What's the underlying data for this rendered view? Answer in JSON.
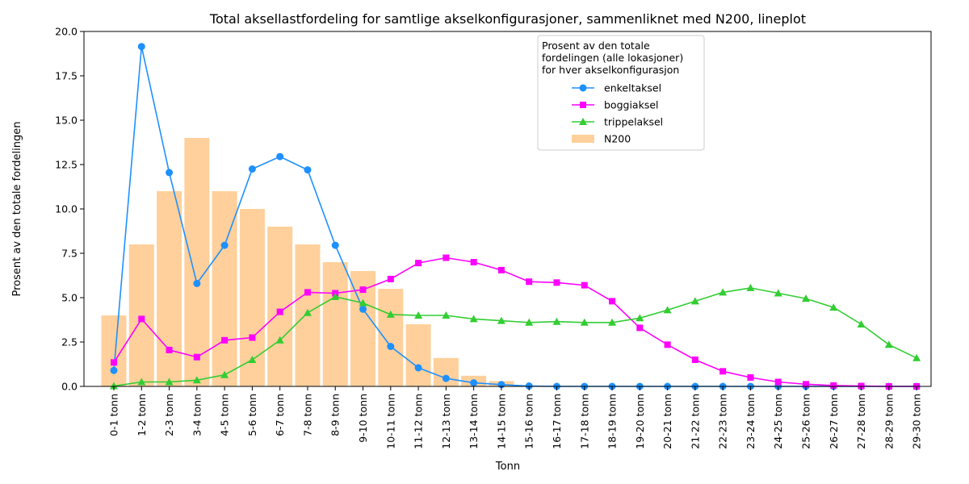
{
  "chart_data": {
    "type": "line",
    "title": "Total aksellastfordeling for samtlige akselkonfigurasjoner, sammenliknet med N200, lineplot",
    "xlabel": "Tonn",
    "ylabel": "Prosent av den totale fordelingen",
    "ylim": [
      0,
      20
    ],
    "yticks": [
      "0.0",
      "2.5",
      "5.0",
      "7.5",
      "10.0",
      "12.5",
      "15.0",
      "17.5",
      "20.0"
    ],
    "grid": false,
    "legend_position": "top-center",
    "legend_title": "Prosent av den totale\nfordelingen (alle lokasjoner)\nfor hver akselkonfigurasjon",
    "categories": [
      "0-1 tonn",
      "1-2 tonn",
      "2-3 tonn",
      "3-4 tonn",
      "4-5 tonn",
      "5-6 tonn",
      "6-7 tonn",
      "7-8 tonn",
      "8-9 tonn",
      "9-10 tonn",
      "10-11 tonn",
      "11-12 tonn",
      "12-13 tonn",
      "13-14 tonn",
      "14-15 tonn",
      "15-16 tonn",
      "16-17 tonn",
      "17-18 tonn",
      "18-19 tonn",
      "19-20 tonn",
      "20-21 tonn",
      "21-22 tonn",
      "22-23 tonn",
      "23-24 tonn",
      "24-25 tonn",
      "25-26 tonn",
      "26-27 tonn",
      "27-28 tonn",
      "28-29 tonn",
      "29-30 tonn"
    ],
    "series": [
      {
        "name": "enkeltaksel",
        "type": "line",
        "marker": "circle",
        "color": "#1e90ff",
        "values": [
          0.9,
          19.15,
          12.05,
          5.8,
          7.95,
          12.25,
          12.95,
          12.2,
          7.95,
          4.35,
          2.25,
          1.05,
          0.45,
          0.2,
          0.1,
          0.02,
          0.0,
          0.0,
          0.0,
          0.0,
          0.0,
          0.0,
          0.0,
          0.0,
          0.0,
          0.0,
          0.0,
          0.0,
          0.0,
          0.0
        ]
      },
      {
        "name": "boggiaksel",
        "type": "line",
        "marker": "square",
        "color": "#ff00ff",
        "values": [
          1.35,
          3.8,
          2.05,
          1.65,
          2.6,
          2.75,
          4.2,
          5.3,
          5.25,
          5.45,
          6.05,
          6.95,
          7.25,
          7.0,
          6.55,
          5.9,
          5.85,
          5.7,
          4.8,
          3.3,
          2.35,
          1.5,
          0.85,
          0.5,
          0.25,
          0.12,
          0.05,
          0.02,
          0.0,
          0.0
        ]
      },
      {
        "name": "trippelaksel",
        "type": "line",
        "marker": "triangle",
        "color": "#32cd32",
        "values": [
          0.02,
          0.25,
          0.25,
          0.35,
          0.65,
          1.5,
          2.6,
          4.15,
          5.05,
          4.7,
          4.05,
          4.0,
          4.0,
          3.8,
          3.7,
          3.6,
          3.65,
          3.6,
          3.6,
          3.85,
          4.3,
          4.8,
          5.3,
          5.55,
          5.25,
          4.95,
          4.45,
          3.5,
          2.35,
          1.6
        ]
      },
      {
        "name": "N200",
        "type": "bar",
        "color": "#ffd09b",
        "values": [
          4.0,
          8.0,
          11.0,
          14.0,
          11.0,
          10.0,
          9.0,
          8.0,
          7.0,
          6.5,
          5.5,
          3.5,
          1.6,
          0.6,
          0.3,
          0.0,
          0.0,
          0.0,
          0.0,
          0.0,
          0.0,
          0.0,
          0.0,
          0.0,
          0.0,
          0.0,
          0.0,
          0.0,
          0.0,
          0.0
        ]
      }
    ]
  }
}
